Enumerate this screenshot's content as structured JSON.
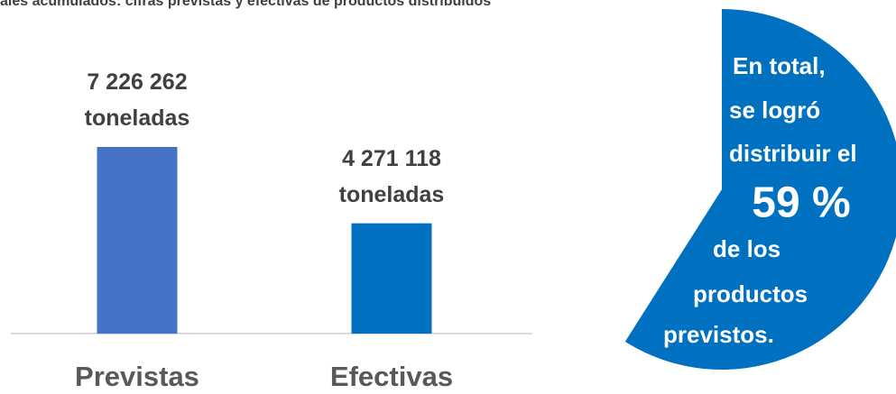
{
  "chart_data": [
    {
      "type": "bar",
      "title": "ales acumulados: cifras previstas y efectivas de productos distribuidos",
      "categories": [
        "Previstas",
        "Efectivas"
      ],
      "values": [
        7226262,
        4271118
      ],
      "value_labels": [
        "7 226 262 toneladas",
        "4 271 118 toneladas"
      ],
      "colors": [
        "#4472c4",
        "#0070c0"
      ]
    },
    {
      "type": "pie",
      "values": [
        59
      ],
      "value_labels": [
        "59 %"
      ],
      "color": "#0070c0",
      "text_before": [
        "En total,",
        "se logró",
        "distribuir el"
      ],
      "text_after": [
        "de los",
        "productos",
        "previstos."
      ]
    }
  ]
}
